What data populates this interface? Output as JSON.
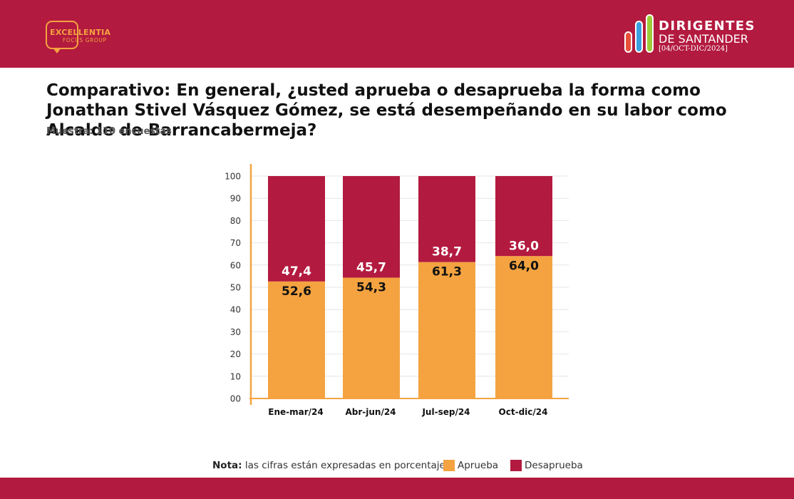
{
  "header": {
    "left_logo": {
      "brand": "EXCELLENTIA",
      "sub": "FOCUS GROUP"
    },
    "right_logo": {
      "line1": "DIRIGENTES",
      "line2": "DE SANTANDER",
      "line3": "[04/OCT-DIC/2024]"
    }
  },
  "title": "Comparativo: En general, ¿usted aprueba o desaprueba la forma como Jonathan Stivel Vásquez Gómez, se está desempeñando en su labor como Alcalde de Barrancabermeja?",
  "sample": "Muestra: 110 encuestas",
  "note": {
    "label": "Nota:",
    "text": "las cifras están expresadas en porcentaje"
  },
  "colors": {
    "brand": "#b31a3f",
    "aprueba": "#f4a340",
    "desaprueba": "#b31a3f",
    "axis": "#f4a340"
  },
  "chart_data": {
    "type": "bar",
    "stacked": true,
    "categories": [
      "Ene-mar/24",
      "Abr-jun/24",
      "Jul-sep/24",
      "Oct-dic/24"
    ],
    "series": [
      {
        "name": "Aprueba",
        "values": [
          52.6,
          54.3,
          61.3,
          64.0
        ],
        "labels": [
          "52,6",
          "54,3",
          "61,3",
          "64,0"
        ],
        "color": "#f4a340"
      },
      {
        "name": "Desaprueba",
        "values": [
          47.4,
          45.7,
          38.7,
          36.0
        ],
        "labels": [
          "47,4",
          "45,7",
          "38,7",
          "36,0"
        ],
        "color": "#b31a3f"
      }
    ],
    "ylim": [
      0,
      100
    ],
    "yticks": [
      "00",
      "10",
      "20",
      "30",
      "40",
      "50",
      "60",
      "70",
      "80",
      "90",
      "100"
    ],
    "grid": true,
    "legend": "bottom"
  }
}
